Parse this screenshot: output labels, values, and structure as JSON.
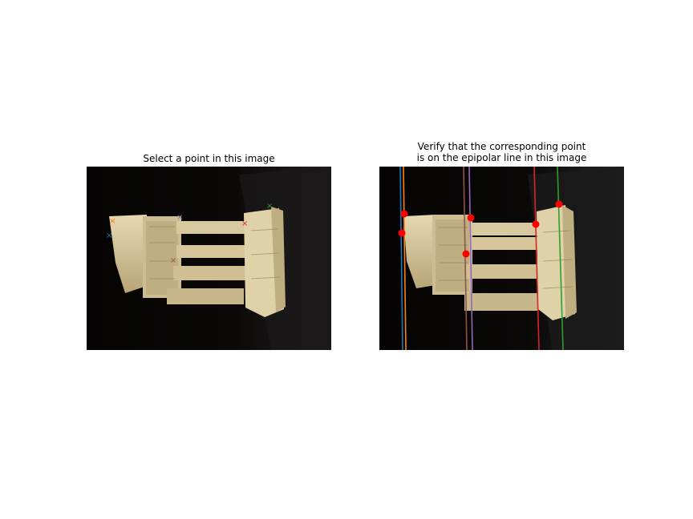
{
  "window": {
    "left_title": "Select a point in this image",
    "right_title_line1": "Verify that the corresponding point",
    "right_title_line2": "is on the epipolar line in this image"
  },
  "points": [
    {
      "color": "#1f77b4"
    },
    {
      "color": "#ff7f0e"
    },
    {
      "color": "#2ca02c"
    },
    {
      "color": "#d62728"
    },
    {
      "color": "#9467bd"
    },
    {
      "color": "#8c564b"
    }
  ],
  "colors": {
    "background": "#ffffff",
    "image_background": "#050403",
    "marker_fill": "#ff0000",
    "temple_stone": "#d8c9a0"
  }
}
